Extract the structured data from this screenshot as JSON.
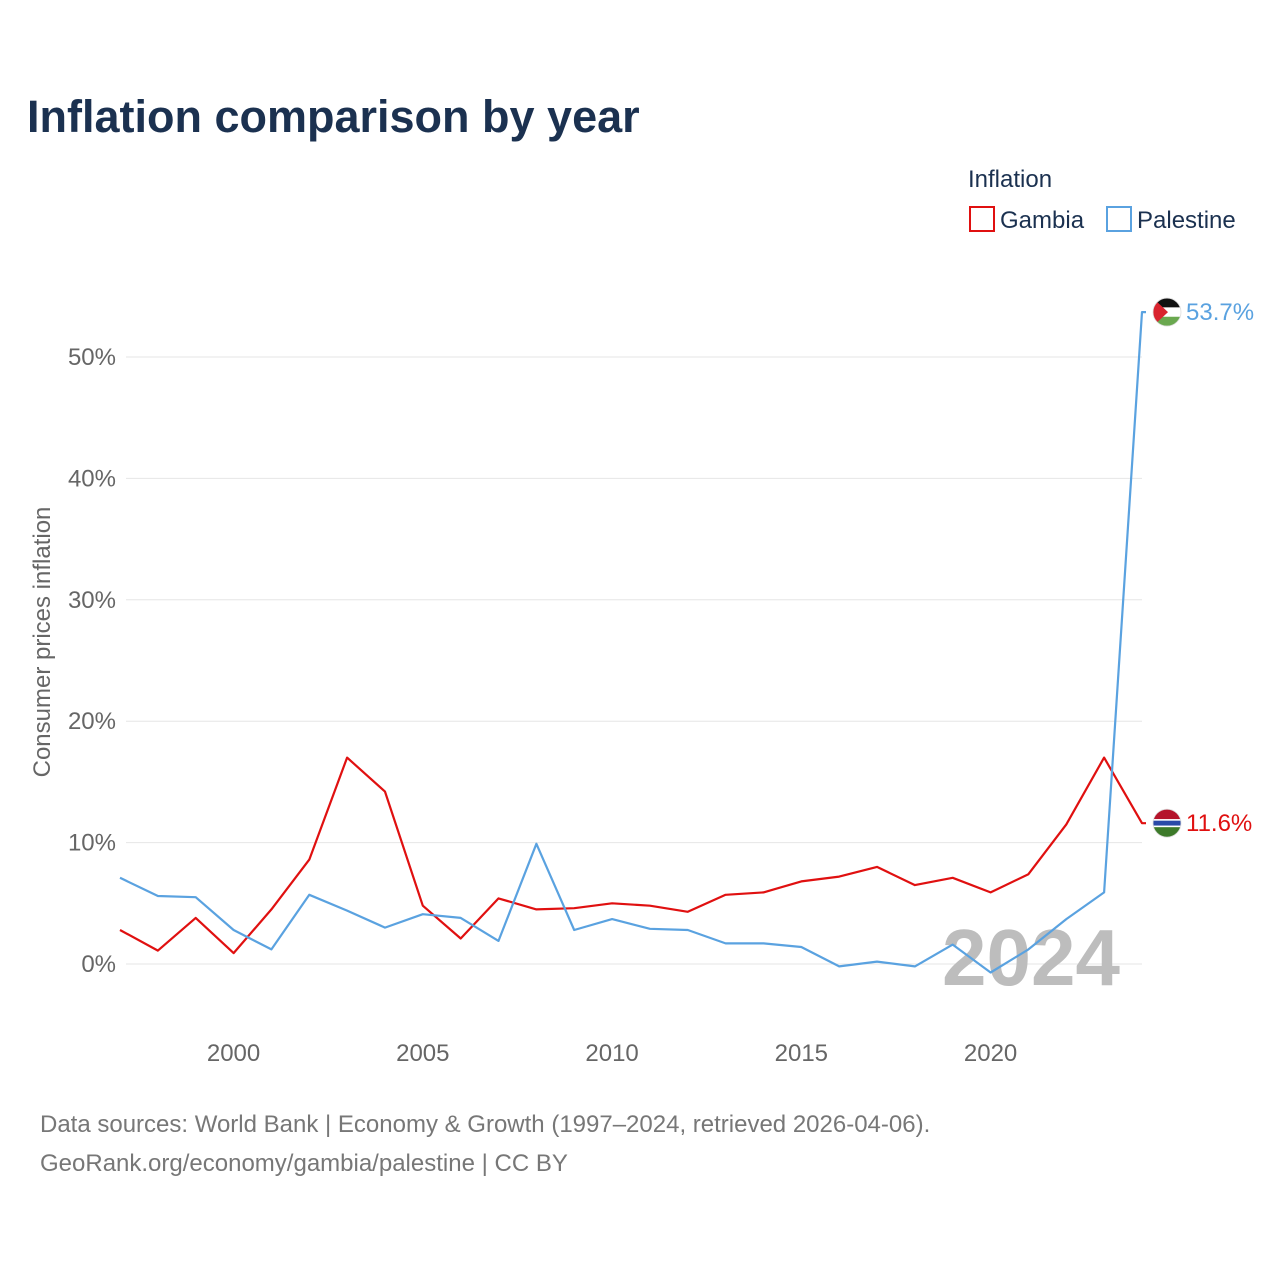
{
  "chart_data": {
    "type": "line",
    "title": "Inflation comparison by year",
    "ylabel": "Consumer prices inflation",
    "xlabel": "",
    "xlim": [
      1997,
      2024
    ],
    "ylim": [
      -4,
      57
    ],
    "x_ticks": [
      2000,
      2005,
      2010,
      2015,
      2020
    ],
    "x_tick_labels": [
      "2000",
      "2005",
      "2010",
      "2015",
      "2020"
    ],
    "y_ticks": [
      0,
      10,
      20,
      30,
      40,
      50
    ],
    "y_tick_labels": [
      "0%",
      "10%",
      "20%",
      "30%",
      "40%",
      "50%"
    ],
    "grid": true,
    "legend": {
      "title": "Inflation",
      "position": "top-right",
      "entries": [
        "Gambia",
        "Palestine"
      ]
    },
    "x": [
      1997,
      1998,
      1999,
      2000,
      2001,
      2002,
      2003,
      2004,
      2005,
      2006,
      2007,
      2008,
      2009,
      2010,
      2011,
      2012,
      2013,
      2014,
      2015,
      2016,
      2017,
      2018,
      2019,
      2020,
      2021,
      2022,
      2023,
      2024
    ],
    "series": [
      {
        "name": "Gambia",
        "color": "#e01010",
        "end_label": "11.6%",
        "values": [
          2.8,
          1.1,
          3.8,
          0.9,
          4.5,
          8.6,
          17.0,
          14.2,
          4.8,
          2.1,
          5.4,
          4.5,
          4.6,
          5.0,
          4.8,
          4.3,
          5.7,
          5.9,
          6.8,
          7.2,
          8.0,
          6.5,
          7.1,
          5.9,
          7.4,
          11.5,
          17.0,
          11.6
        ]
      },
      {
        "name": "Palestine",
        "color": "#5aa2e0",
        "end_label": "53.7%",
        "values": [
          7.1,
          5.6,
          5.5,
          2.8,
          1.2,
          5.7,
          4.4,
          3.0,
          4.1,
          3.8,
          1.9,
          9.9,
          2.8,
          3.7,
          2.9,
          2.8,
          1.7,
          1.7,
          1.4,
          -0.2,
          0.2,
          -0.2,
          1.6,
          -0.7,
          1.2,
          3.7,
          5.9,
          53.7
        ]
      }
    ],
    "annotations": [
      "2024"
    ]
  },
  "footer": {
    "source_line": "Data sources: World Bank | Economy & Growth (1997–2024, retrieved 2026-04-06).",
    "credit_line": "GeoRank.org/economy/gambia/palestine | CC BY"
  }
}
